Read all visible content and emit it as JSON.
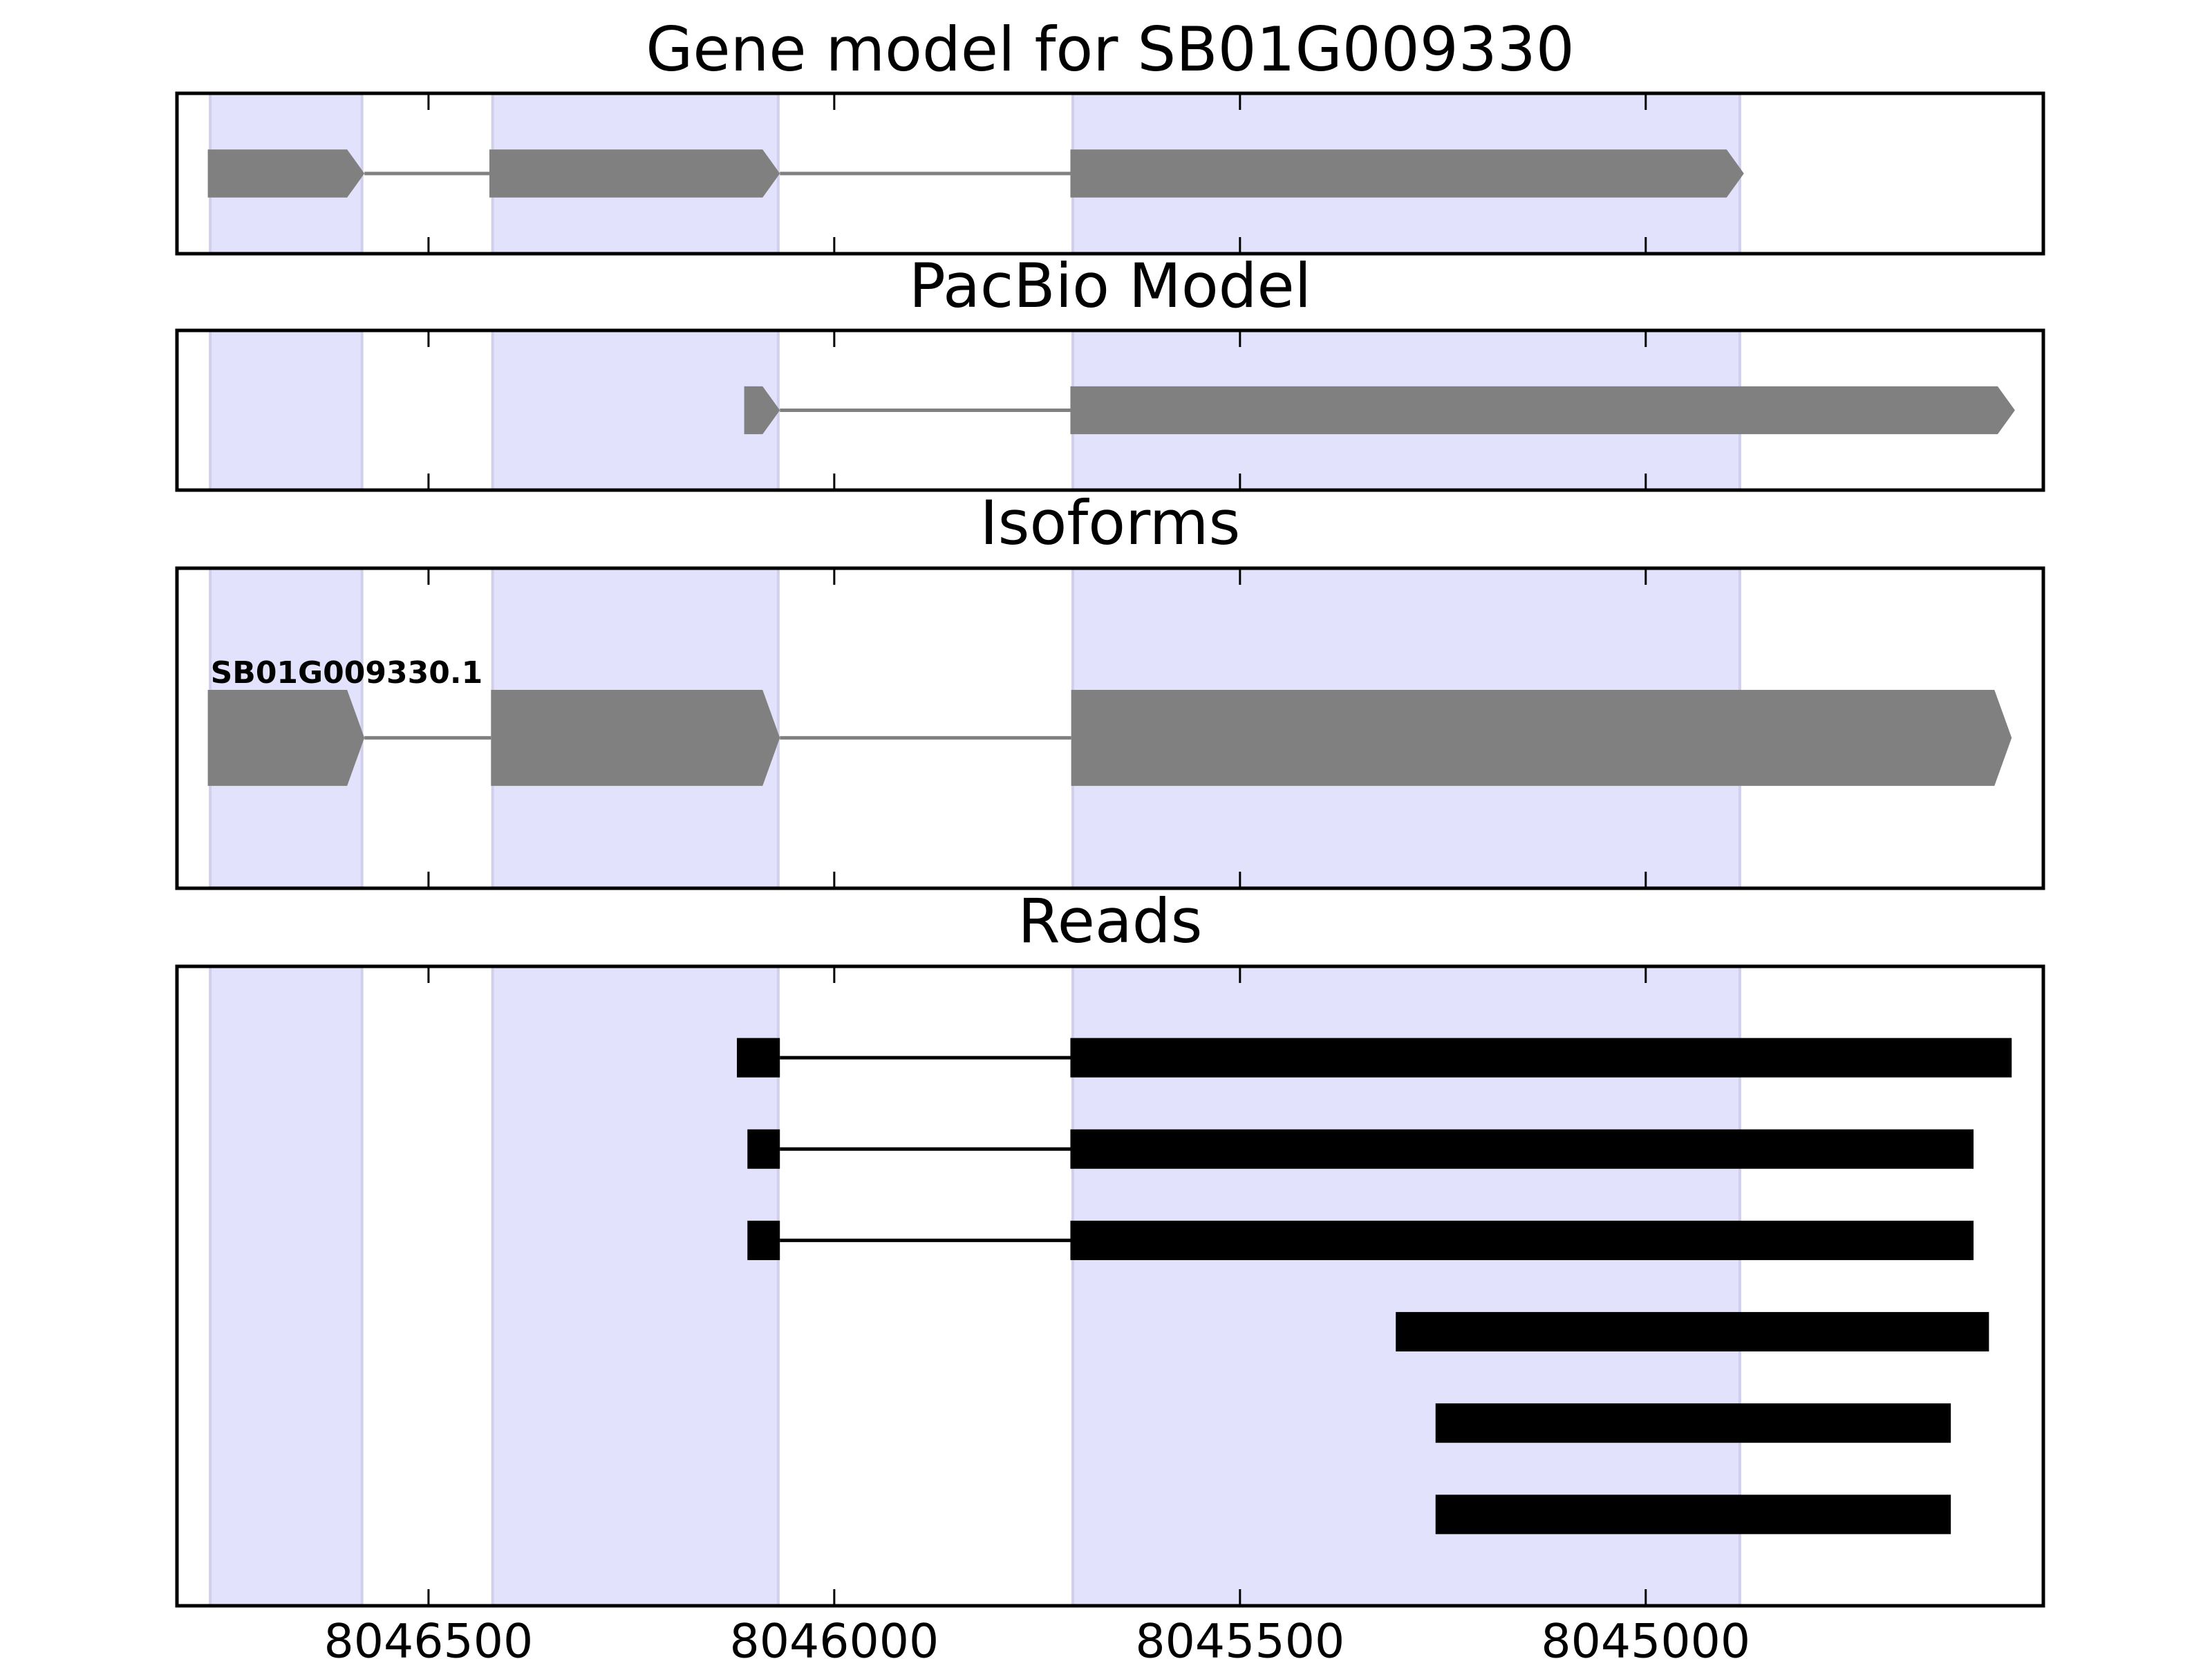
{
  "chart_data": [
    {
      "type": "gene",
      "title": "Gene model for SB01G009330",
      "color": "#808080",
      "highlight_color": "#e2e2fd",
      "xlim": [
        8046810,
        8044510
      ],
      "xticks": [
        8046500,
        8046000,
        8045500,
        8045000
      ],
      "highlights": [
        [
          8046769,
          8046582
        ],
        [
          8046421,
          8046069
        ],
        [
          8045706,
          8044884
        ]
      ],
      "features": [
        {
          "exons": [
            [
              8046772,
              8046579
            ],
            [
              8046425,
              8046067
            ],
            [
              8045709,
              8044879
            ]
          ]
        }
      ]
    },
    {
      "type": "gene",
      "title": "PacBio Model",
      "color": "#808080",
      "highlight_color": "#e2e2fd",
      "xlim": [
        8046810,
        8044510
      ],
      "xticks": [
        8046500,
        8046000,
        8045500,
        8045000
      ],
      "highlights": [
        [
          8046769,
          8046582
        ],
        [
          8046421,
          8046069
        ],
        [
          8045706,
          8044884
        ]
      ],
      "features": [
        {
          "exons": [
            [
              8046111,
              8046067
            ],
            [
              8045709,
              8044545
            ]
          ]
        }
      ]
    },
    {
      "type": "gene",
      "title": "Isoforms",
      "color": "#808080",
      "highlight_color": "#e2e2fd",
      "xlim": [
        8046810,
        8044510
      ],
      "xticks": [
        8046500,
        8046000,
        8045500,
        8045000
      ],
      "highlights": [
        [
          8046769,
          8046582
        ],
        [
          8046421,
          8046069
        ],
        [
          8045706,
          8044884
        ]
      ],
      "features": [
        {
          "label": "SB01G009330.1",
          "exons": [
            [
              8046772,
              8046579
            ],
            [
              8046423,
              8046067
            ],
            [
              8045708,
              8044549
            ]
          ]
        }
      ]
    },
    {
      "type": "reads",
      "title": "Reads",
      "color": "#000000",
      "highlight_color": "#e2e2fd",
      "xlim": [
        8046810,
        8044510
      ],
      "xticks": [
        8046500,
        8046000,
        8045500,
        8045000
      ],
      "highlights": [
        [
          8046769,
          8046582
        ],
        [
          8046421,
          8046069
        ],
        [
          8045706,
          8044884
        ]
      ],
      "features": [
        {
          "exons": [
            [
              8046120,
              8046067
            ],
            [
              8045709,
              8044549
            ]
          ]
        },
        {
          "exons": [
            [
              8046107,
              8046067
            ],
            [
              8045709,
              8044596
            ]
          ]
        },
        {
          "exons": [
            [
              8046107,
              8046067
            ],
            [
              8045709,
              8044596
            ]
          ]
        },
        {
          "exons": [
            [
              8045308,
              8044577
            ]
          ]
        },
        {
          "exons": [
            [
              8045259,
              8044624
            ]
          ]
        },
        {
          "exons": [
            [
              8045259,
              8044624
            ]
          ]
        }
      ]
    }
  ]
}
